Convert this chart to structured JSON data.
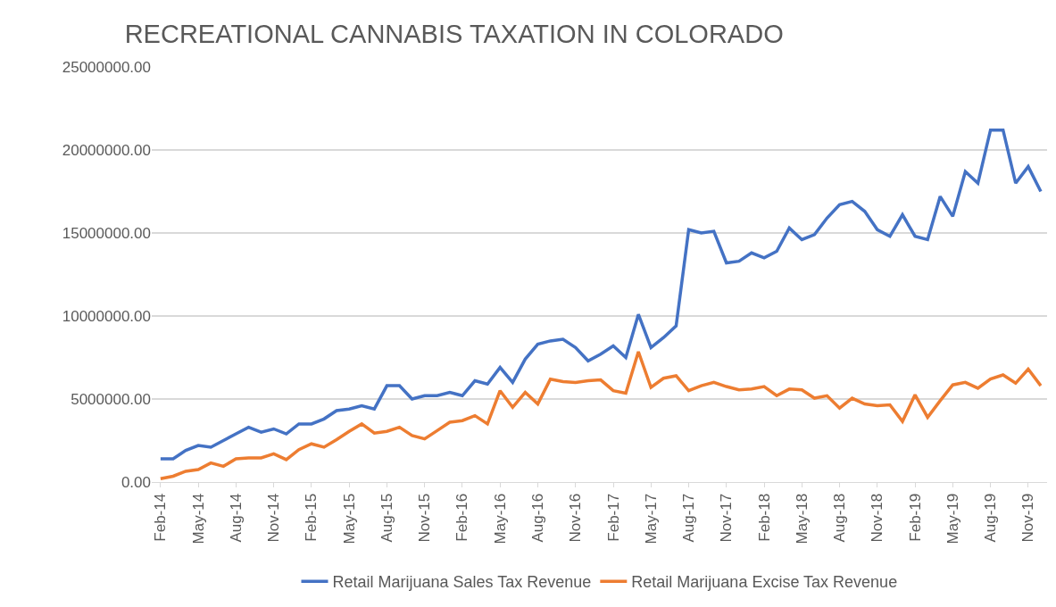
{
  "chart_data": {
    "type": "line",
    "title": "RECREATIONAL CANNABIS TAXATION IN COLORADO",
    "categories": [
      "Feb-14",
      null,
      null,
      "May-14",
      null,
      null,
      "Aug-14",
      null,
      null,
      "Nov-14",
      null,
      null,
      "Feb-15",
      null,
      null,
      "May-15",
      null,
      null,
      "Aug-15",
      null,
      null,
      "Nov-15",
      null,
      null,
      "Feb-16",
      null,
      null,
      "May-16",
      null,
      null,
      "Aug-16",
      null,
      null,
      "Nov-16",
      null,
      null,
      "Feb-17",
      null,
      null,
      "May-17",
      null,
      null,
      "Aug-17",
      null,
      null,
      "Nov-17",
      null,
      null,
      "Feb-18",
      null,
      null,
      "May-18",
      null,
      null,
      "Aug-18",
      null,
      null,
      "Nov-18",
      null,
      null,
      "Feb-19",
      null,
      null,
      "May-19",
      null,
      null,
      "Aug-19",
      null,
      null,
      "Nov-19",
      null
    ],
    "series": [
      {
        "name": "Retail Marijuana Sales Tax Revenue",
        "color": "#4472c4",
        "values": [
          1400000,
          1400000,
          1900000,
          2200000,
          2100000,
          2500000,
          2900000,
          3300000,
          3000000,
          3200000,
          2900000,
          3500000,
          3500000,
          3800000,
          4300000,
          4400000,
          4600000,
          4400000,
          5800000,
          5800000,
          5000000,
          5200000,
          5200000,
          5400000,
          5200000,
          6100000,
          5900000,
          6900000,
          6000000,
          7400000,
          8300000,
          8500000,
          8600000,
          8100000,
          7300000,
          7700000,
          8200000,
          7500000,
          10100000,
          8100000,
          8700000,
          9400000,
          15200000,
          15000000,
          15100000,
          13200000,
          13300000,
          13800000,
          13500000,
          13900000,
          15300000,
          14600000,
          14900000,
          15900000,
          16700000,
          16900000,
          16300000,
          15200000,
          14800000,
          16100000,
          14800000,
          14600000,
          17200000,
          16000000,
          18700000,
          18000000,
          21200000,
          21200000,
          18000000,
          19000000,
          17500000
        ]
      },
      {
        "name": "Retail Marijuana Excise Tax Revenue",
        "color": "#ed7d31",
        "values": [
          200000,
          350000,
          650000,
          750000,
          1150000,
          950000,
          1400000,
          1450000,
          1450000,
          1700000,
          1350000,
          1950000,
          2300000,
          2100000,
          2550000,
          3050000,
          3500000,
          2950000,
          3050000,
          3300000,
          2800000,
          2600000,
          3100000,
          3600000,
          3700000,
          4000000,
          3500000,
          5500000,
          4500000,
          5400000,
          4700000,
          6200000,
          6050000,
          6000000,
          6100000,
          6150000,
          5500000,
          5350000,
          7850000,
          5700000,
          6250000,
          6400000,
          5500000,
          5800000,
          6000000,
          5750000,
          5550000,
          5600000,
          5750000,
          5200000,
          5600000,
          5550000,
          5050000,
          5200000,
          4450000,
          5050000,
          4700000,
          4600000,
          4650000,
          3650000,
          5250000,
          3900000,
          4900000,
          5850000,
          6000000,
          5650000,
          6200000,
          6450000,
          5950000,
          6800000,
          5800000
        ]
      }
    ],
    "ylim": [
      0,
      25000000
    ],
    "yticks": [
      {
        "value": 0,
        "label": "0.00"
      },
      {
        "value": 5000000,
        "label": "5000000.00"
      },
      {
        "value": 10000000,
        "label": "10000000.00"
      },
      {
        "value": 15000000,
        "label": "15000000.00"
      },
      {
        "value": 20000000,
        "label": "20000000.00"
      },
      {
        "value": 25000000,
        "label": "25000000.00"
      }
    ],
    "grid": "y",
    "legend": "bottom",
    "marker": "none",
    "line_style": "solid"
  }
}
